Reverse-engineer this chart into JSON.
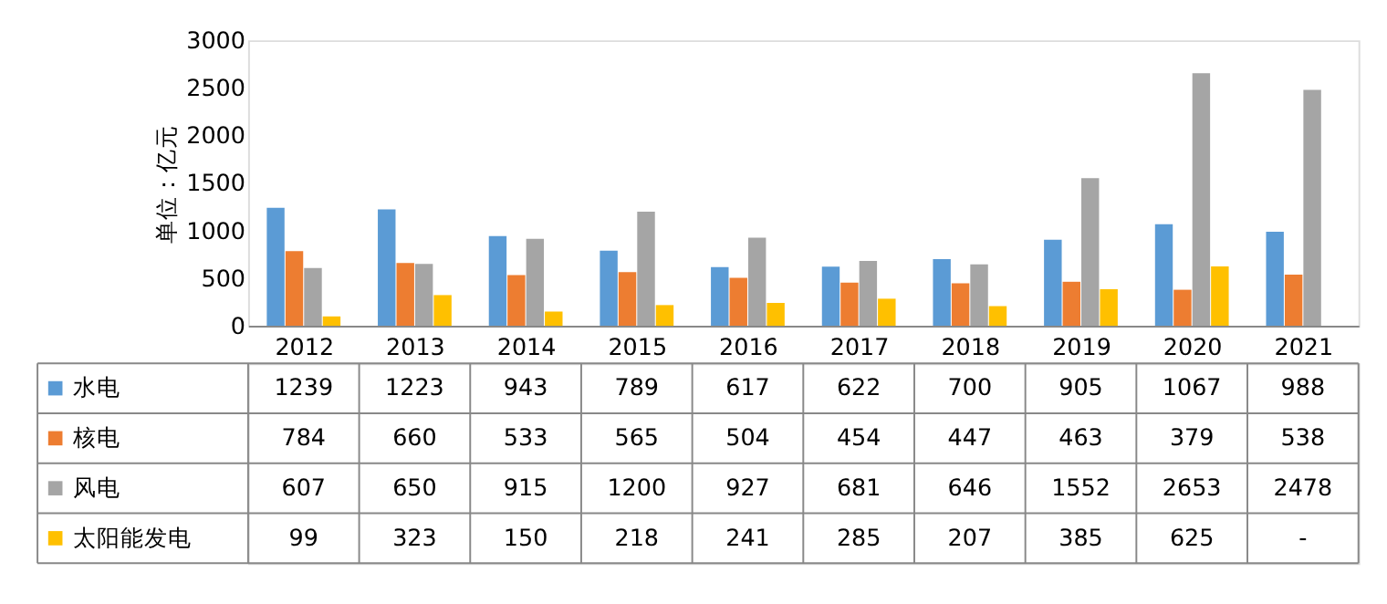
{
  "chart_data": {
    "type": "bar",
    "ylabel": "单位：亿元",
    "categories": [
      "2012",
      "2013",
      "2014",
      "2015",
      "2016",
      "2017",
      "2018",
      "2019",
      "2020",
      "2021"
    ],
    "series": [
      {
        "name": "水电",
        "color": "#5b9bd5",
        "values": [
          1239,
          1223,
          943,
          789,
          617,
          622,
          700,
          905,
          1067,
          988
        ],
        "value_labels": [
          "1239",
          "1223",
          "943",
          "789",
          "617",
          "622",
          "700",
          "905",
          "1067",
          "988"
        ]
      },
      {
        "name": "核电",
        "color": "#ed7d31",
        "values": [
          784,
          660,
          533,
          565,
          504,
          454,
          447,
          463,
          379,
          538
        ],
        "value_labels": [
          "784",
          "660",
          "533",
          "565",
          "504",
          "454",
          "447",
          "463",
          "379",
          "538"
        ]
      },
      {
        "name": "风电",
        "color": "#a5a5a5",
        "values": [
          607,
          650,
          915,
          1200,
          927,
          681,
          646,
          1552,
          2653,
          2478
        ],
        "value_labels": [
          "607",
          "650",
          "915",
          "1200",
          "927",
          "681",
          "646",
          "1552",
          "2653",
          "2478"
        ]
      },
      {
        "name": "太阳能发电",
        "color": "#ffc000",
        "values": [
          99,
          323,
          150,
          218,
          241,
          285,
          207,
          385,
          625,
          null
        ],
        "value_labels": [
          "99",
          "323",
          "150",
          "218",
          "241",
          "285",
          "207",
          "385",
          "625",
          "-"
        ]
      }
    ],
    "ylim": [
      0,
      3000
    ],
    "yticks": [
      0,
      500,
      1000,
      1500,
      2000,
      2500,
      3000
    ],
    "grid": false,
    "legend": "bottom"
  }
}
